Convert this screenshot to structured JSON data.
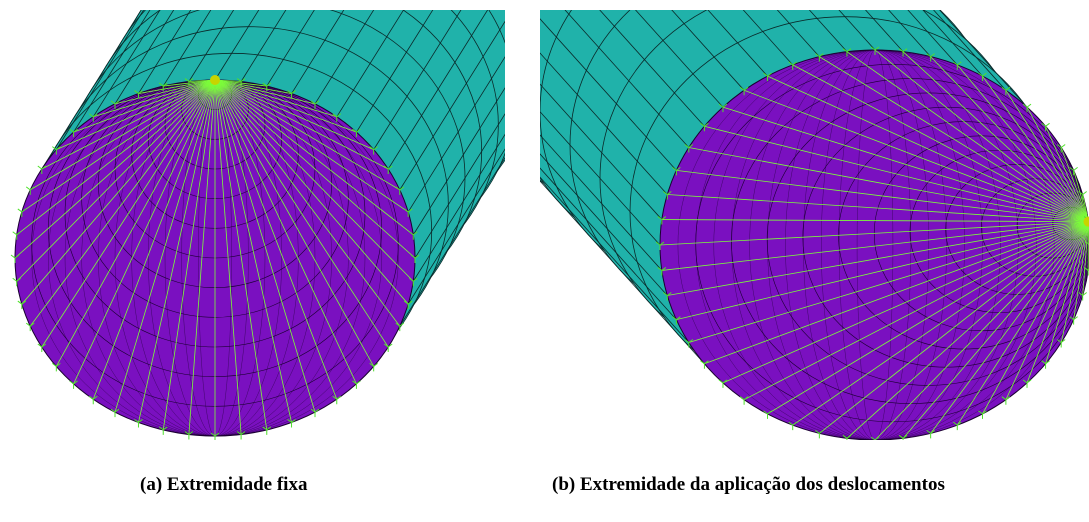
{
  "captions": {
    "a": "(a)  Extremidade fixa",
    "b": "(b) Extremidade da aplicação dos deslocamentos"
  }
}
